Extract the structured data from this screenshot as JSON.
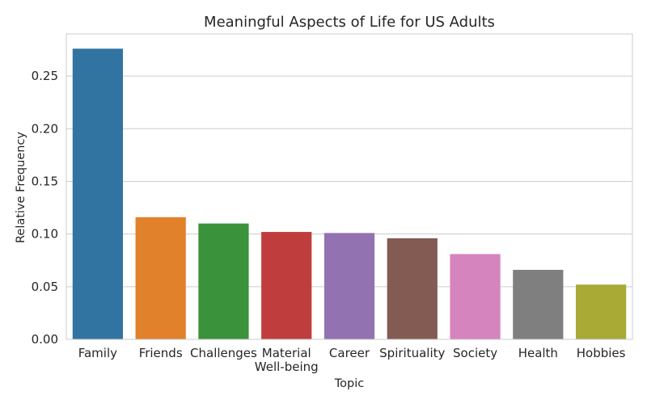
{
  "chart_data": {
    "type": "bar",
    "title": "Meaningful Aspects of Life for US Adults",
    "xlabel": "Topic",
    "ylabel": "Relative Frequency",
    "categories": [
      [
        "Family"
      ],
      [
        "Friends"
      ],
      [
        "Challenges"
      ],
      [
        "Material",
        "Well-being"
      ],
      [
        "Career"
      ],
      [
        "Spirituality"
      ],
      [
        "Society"
      ],
      [
        "Health"
      ],
      [
        "Hobbies"
      ]
    ],
    "values": [
      0.276,
      0.116,
      0.11,
      0.102,
      0.101,
      0.096,
      0.081,
      0.066,
      0.052
    ],
    "colors": [
      "#3274a1",
      "#e1812c",
      "#3a923a",
      "#c03d3e",
      "#9372b2",
      "#845b53",
      "#d684bd",
      "#7f7f7f",
      "#a9aa35"
    ],
    "ylim": [
      0,
      0.29
    ],
    "yticks": [
      0.0,
      0.05,
      0.1,
      0.15,
      0.2,
      0.25
    ],
    "ytick_labels": [
      "0.00",
      "0.05",
      "0.10",
      "0.15",
      "0.20",
      "0.25"
    ],
    "grid": true,
    "grid_color": "#cccccc",
    "spine_color": "#cccccc"
  }
}
